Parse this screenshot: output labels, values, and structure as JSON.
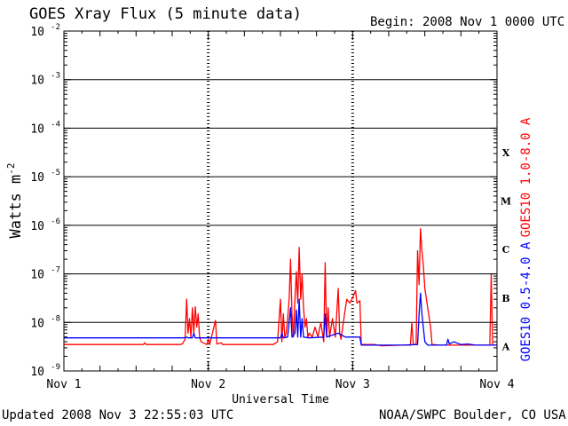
{
  "header": {
    "title": "GOES Xray Flux (5 minute data)",
    "begin": "Begin:  2008 Nov 1 0000 UTC"
  },
  "footer": {
    "updated": "Updated 2008 Nov  3 22:55:03 UTC",
    "credit": "NOAA/SWPC Boulder, CO USA"
  },
  "chart_data": {
    "type": "line",
    "title": "GOES Xray Flux (5 minute data)",
    "xlabel": "Universal Time",
    "ylabel": "Watts m",
    "ylabel_superscript": "-2",
    "y_scale": "log",
    "ylim": [
      1e-09,
      0.01
    ],
    "x_unit": "days since Nov 1 00:00 UTC",
    "xlim": [
      0,
      3
    ],
    "x_ticks": [
      {
        "value": 0,
        "label": "Nov 1"
      },
      {
        "value": 1,
        "label": "Nov 2"
      },
      {
        "value": 2,
        "label": "Nov 3"
      },
      {
        "value": 3,
        "label": "Nov 4"
      }
    ],
    "y_ticks": [
      {
        "exp": -9,
        "label": "10",
        "sup": "-9"
      },
      {
        "exp": -8,
        "label": "10",
        "sup": "-8"
      },
      {
        "exp": -7,
        "label": "10",
        "sup": "-7"
      },
      {
        "exp": -6,
        "label": "10",
        "sup": "-6"
      },
      {
        "exp": -5,
        "label": "10",
        "sup": "-5"
      },
      {
        "exp": -4,
        "label": "10",
        "sup": "-4"
      },
      {
        "exp": -3,
        "label": "10",
        "sup": "-3"
      },
      {
        "exp": -2,
        "label": "10",
        "sup": "-2"
      }
    ],
    "flare_classes": [
      {
        "label": "X",
        "exp": -4
      },
      {
        "label": "M",
        "exp": -5
      },
      {
        "label": "C",
        "exp": -6
      },
      {
        "label": "B",
        "exp": -7
      },
      {
        "label": "A",
        "exp": -8
      }
    ],
    "grid_lines_exp": [
      -3,
      -4,
      -5,
      -6,
      -7,
      -8
    ],
    "series": [
      {
        "name": "GOES10 1.0-8.0 A",
        "color": "#ff0000",
        "points": [
          [
            0.0,
            3.5e-09
          ],
          [
            0.55,
            3.5e-09
          ],
          [
            0.56,
            3.8e-09
          ],
          [
            0.57,
            3.5e-09
          ],
          [
            0.8,
            3.5e-09
          ],
          [
            0.82,
            3.6e-09
          ],
          [
            0.84,
            4.5e-09
          ],
          [
            0.85,
            3e-08
          ],
          [
            0.86,
            6e-09
          ],
          [
            0.87,
            1.2e-08
          ],
          [
            0.88,
            5e-09
          ],
          [
            0.89,
            2e-08
          ],
          [
            0.9,
            6e-09
          ],
          [
            0.91,
            2.1e-08
          ],
          [
            0.92,
            8e-09
          ],
          [
            0.93,
            1.5e-08
          ],
          [
            0.94,
            5e-09
          ],
          [
            0.95,
            4e-09
          ],
          [
            0.99,
            3.5e-09
          ],
          [
            1.0,
            4.5e-09
          ],
          [
            1.01,
            3.5e-09
          ],
          [
            1.05,
            1.1e-08
          ],
          [
            1.06,
            3.6e-09
          ],
          [
            1.09,
            3.8e-09
          ],
          [
            1.1,
            3.5e-09
          ],
          [
            1.45,
            3.5e-09
          ],
          [
            1.48,
            4e-09
          ],
          [
            1.5,
            3e-08
          ],
          [
            1.51,
            4e-09
          ],
          [
            1.52,
            1.5e-08
          ],
          [
            1.53,
            5e-09
          ],
          [
            1.54,
            6e-09
          ],
          [
            1.55,
            1.2e-08
          ],
          [
            1.56,
            3e-08
          ],
          [
            1.57,
            2e-07
          ],
          [
            1.58,
            1.5e-08
          ],
          [
            1.59,
            5e-09
          ],
          [
            1.6,
            3e-08
          ],
          [
            1.61,
            1.1e-07
          ],
          [
            1.62,
            2.5e-08
          ],
          [
            1.63,
            3.5e-07
          ],
          [
            1.64,
            3e-08
          ],
          [
            1.65,
            1e-07
          ],
          [
            1.66,
            2e-08
          ],
          [
            1.67,
            8e-09
          ],
          [
            1.68,
            1.2e-08
          ],
          [
            1.69,
            5e-09
          ],
          [
            1.7,
            6e-09
          ],
          [
            1.72,
            5e-09
          ],
          [
            1.74,
            8e-09
          ],
          [
            1.76,
            5e-09
          ],
          [
            1.78,
            1e-08
          ],
          [
            1.8,
            4e-09
          ],
          [
            1.81,
            1.7e-07
          ],
          [
            1.82,
            5e-09
          ],
          [
            1.83,
            2e-08
          ],
          [
            1.84,
            5e-09
          ],
          [
            1.86,
            1.2e-08
          ],
          [
            1.88,
            5e-09
          ],
          [
            1.9,
            5e-08
          ],
          [
            1.91,
            6e-09
          ],
          [
            1.92,
            4.5e-09
          ],
          [
            1.95,
            2e-08
          ],
          [
            1.96,
            3e-08
          ],
          [
            1.98,
            2.5e-08
          ],
          [
            2.0,
            3.2e-08
          ],
          [
            2.02,
            4.5e-08
          ],
          [
            2.03,
            2.5e-08
          ],
          [
            2.05,
            2.8e-08
          ],
          [
            2.06,
            3.5e-09
          ],
          [
            2.15,
            3.5e-09
          ],
          [
            2.2,
            3.3e-09
          ],
          [
            2.35,
            3.4e-09
          ],
          [
            2.4,
            3.4e-09
          ],
          [
            2.41,
            1e-08
          ],
          [
            2.42,
            3.5e-09
          ],
          [
            2.44,
            3.5e-09
          ],
          [
            2.45,
            3e-07
          ],
          [
            2.46,
            6e-08
          ],
          [
            2.47,
            8.5e-07
          ],
          [
            2.48,
            3e-07
          ],
          [
            2.49,
            1.5e-07
          ],
          [
            2.5,
            5e-08
          ],
          [
            2.52,
            2e-08
          ],
          [
            2.54,
            8e-09
          ],
          [
            2.55,
            3.5e-09
          ],
          [
            2.6,
            3.4e-09
          ],
          [
            2.8,
            3.4e-09
          ],
          [
            2.95,
            3.4e-09
          ],
          [
            2.96,
            1e-07
          ],
          [
            2.97,
            3.4e-09
          ],
          [
            3.0,
            3.4e-09
          ]
        ]
      },
      {
        "name": "GOES10 0.5-4.0 A",
        "color": "#0000ff",
        "points": [
          [
            0.0,
            4.8e-09
          ],
          [
            0.84,
            4.8e-09
          ],
          [
            0.85,
            5e-09
          ],
          [
            0.86,
            4.8e-09
          ],
          [
            0.89,
            4.8e-09
          ],
          [
            0.9,
            6e-09
          ],
          [
            0.91,
            4.8e-09
          ],
          [
            1.5,
            4.8e-09
          ],
          [
            1.51,
            6e-09
          ],
          [
            1.52,
            4.8e-09
          ],
          [
            1.55,
            5e-09
          ],
          [
            1.57,
            2e-08
          ],
          [
            1.58,
            5e-09
          ],
          [
            1.6,
            6e-09
          ],
          [
            1.61,
            1.8e-08
          ],
          [
            1.62,
            5e-09
          ],
          [
            1.63,
            3e-08
          ],
          [
            1.64,
            5e-09
          ],
          [
            1.65,
            1.2e-08
          ],
          [
            1.66,
            5e-09
          ],
          [
            1.7,
            4.8e-09
          ],
          [
            1.8,
            5e-09
          ],
          [
            1.81,
            1.5e-08
          ],
          [
            1.82,
            5e-09
          ],
          [
            1.9,
            6e-09
          ],
          [
            1.95,
            5e-09
          ],
          [
            2.0,
            5e-09
          ],
          [
            2.05,
            5e-09
          ],
          [
            2.06,
            3.4e-09
          ],
          [
            2.35,
            3.4e-09
          ],
          [
            2.45,
            3.5e-09
          ],
          [
            2.46,
            1.5e-08
          ],
          [
            2.47,
            4e-08
          ],
          [
            2.48,
            1.5e-08
          ],
          [
            2.5,
            4e-09
          ],
          [
            2.52,
            3.4e-09
          ],
          [
            2.65,
            3.4e-09
          ],
          [
            2.66,
            4.5e-09
          ],
          [
            2.67,
            3.6e-09
          ],
          [
            2.7,
            4e-09
          ],
          [
            2.75,
            3.5e-09
          ],
          [
            2.8,
            3.6e-09
          ],
          [
            2.85,
            3.4e-09
          ],
          [
            2.9,
            3.4e-09
          ],
          [
            3.0,
            3.4e-09
          ]
        ]
      }
    ]
  }
}
